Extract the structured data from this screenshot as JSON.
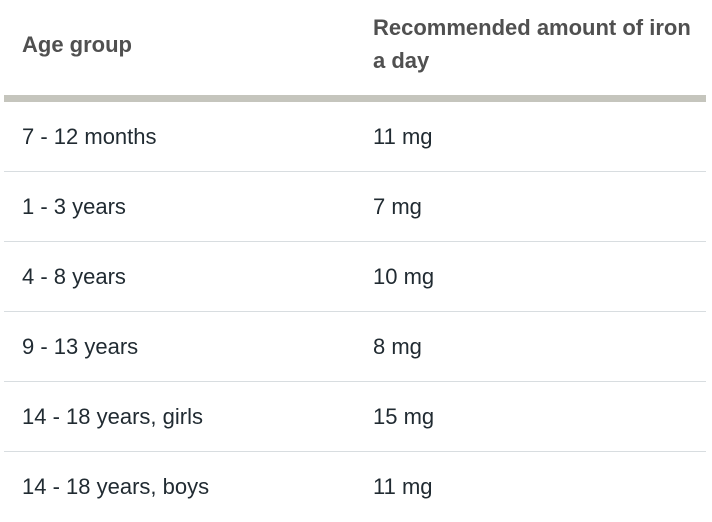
{
  "table": {
    "headers": [
      "Age group",
      "Recommended amount of iron a day"
    ],
    "rows": [
      [
        "7 - 12 months",
        "11 mg"
      ],
      [
        "1 - 3 years",
        "7 mg"
      ],
      [
        "4 - 8 years",
        "10 mg"
      ],
      [
        "9 - 13 years",
        "8 mg"
      ],
      [
        "14 - 18 years, girls",
        "15 mg"
      ],
      [
        "14 - 18 years, boys",
        "11 mg"
      ]
    ]
  },
  "colors": {
    "header_text": "#505050",
    "body_text": "#212b32",
    "header_rule": "#c5c5bd",
    "row_divider": "#d8dde0"
  }
}
